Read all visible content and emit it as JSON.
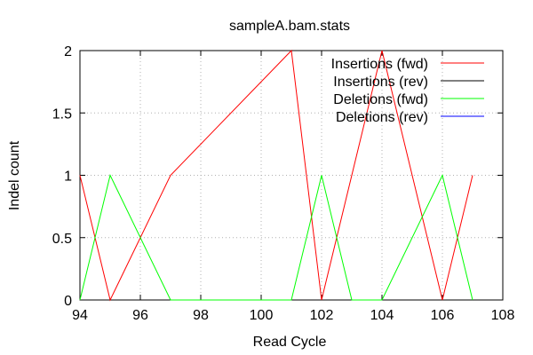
{
  "chart_data": {
    "type": "line",
    "title": "sampleA.bam.stats",
    "xlabel": "Read Cycle",
    "ylabel": "Indel count",
    "xlim": [
      94,
      108
    ],
    "ylim": [
      0,
      2
    ],
    "xticks": [
      94,
      96,
      98,
      100,
      102,
      104,
      106,
      108
    ],
    "yticks": [
      0,
      0.5,
      1,
      1.5,
      2
    ],
    "xtick_labels": [
      "94",
      "96",
      "98",
      "100",
      "102",
      "104",
      "106",
      "108"
    ],
    "ytick_labels": [
      "0",
      "0.5",
      "1",
      "1.5",
      "2"
    ],
    "grid": true,
    "legend_position": "top-right",
    "series": [
      {
        "name": "Insertions (fwd)",
        "color": "#ff0000",
        "x": [
          94,
          95,
          97,
          101,
          102,
          104,
          106,
          107
        ],
        "y": [
          1,
          0,
          1,
          2,
          0,
          2,
          0,
          1
        ]
      },
      {
        "name": "Insertions (rev)",
        "color": "#000000",
        "x": [],
        "y": []
      },
      {
        "name": "Deletions (fwd)",
        "color": "#00ff00",
        "x": [
          94,
          95,
          97,
          101,
          102,
          103,
          104,
          106,
          107
        ],
        "y": [
          0,
          1,
          0,
          0,
          1,
          0,
          0,
          1,
          0
        ]
      },
      {
        "name": "Deletions (rev)",
        "color": "#0000ff",
        "x": [],
        "y": []
      }
    ]
  }
}
